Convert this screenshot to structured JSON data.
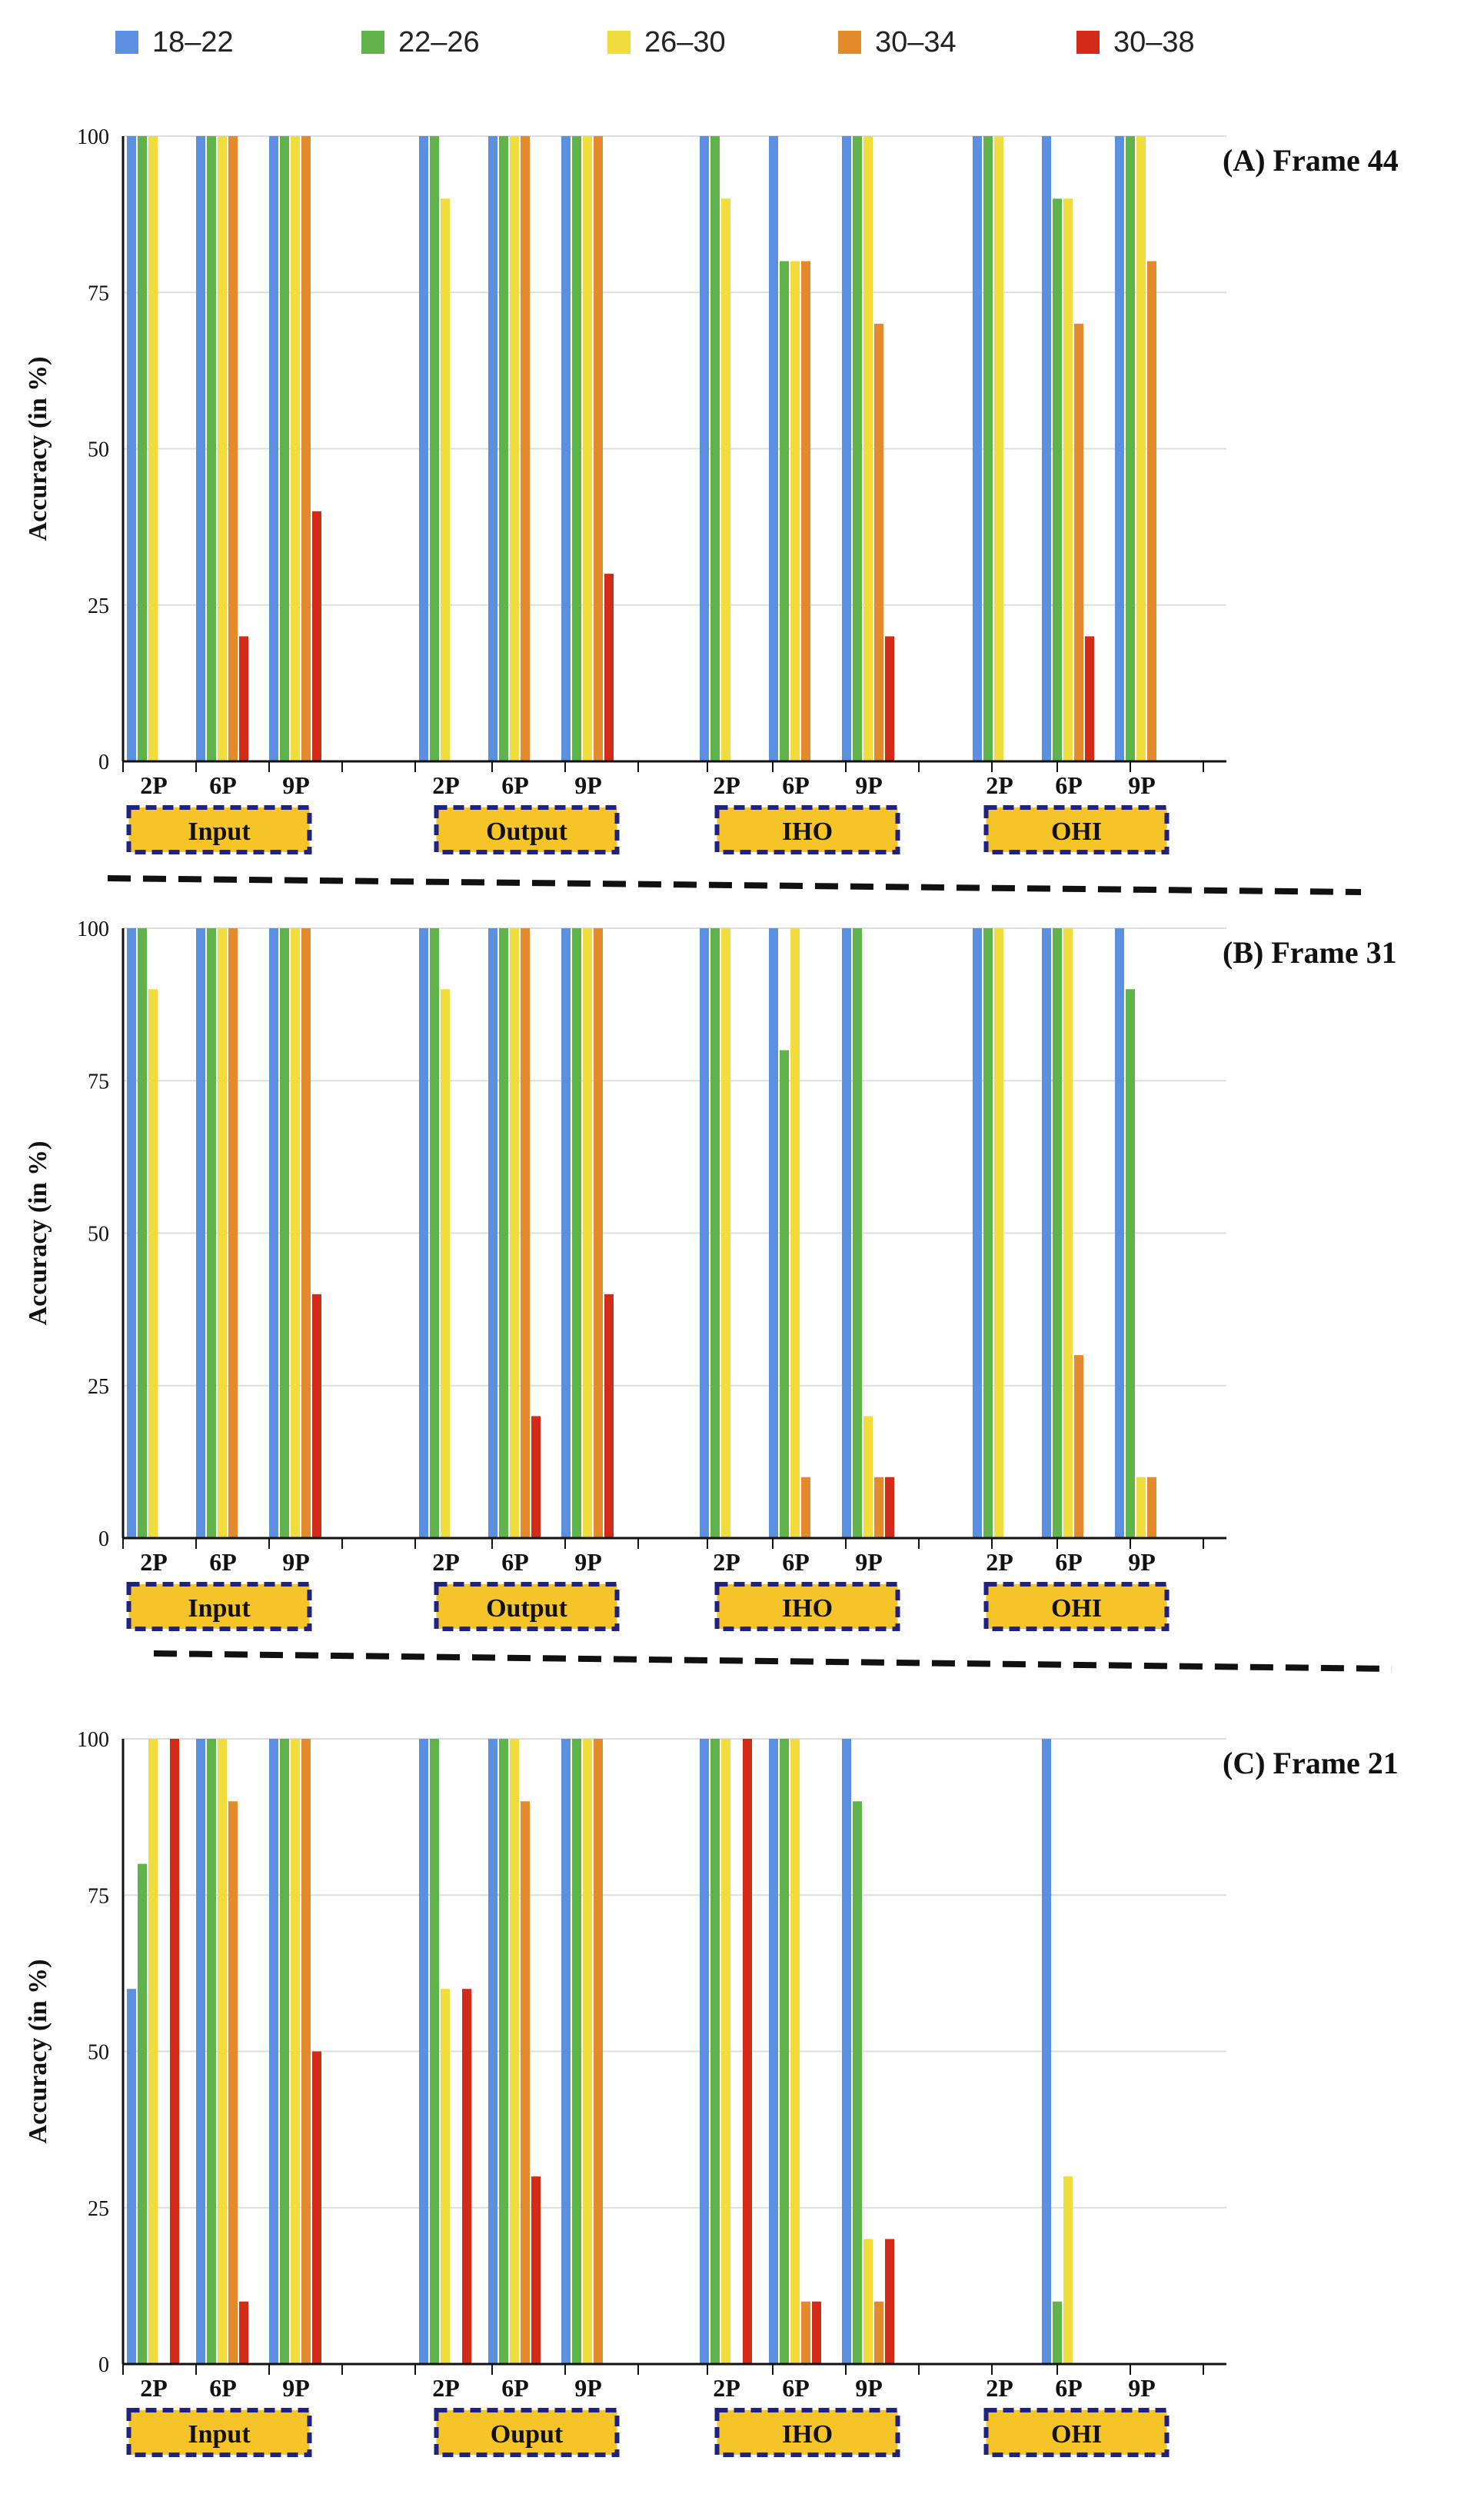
{
  "legend": [
    {
      "label": "18–22",
      "color": "#5b8fe0"
    },
    {
      "label": "22–26",
      "color": "#5fb34a"
    },
    {
      "label": "26–30",
      "color": "#f0dc3c"
    },
    {
      "label": "30–34",
      "color": "#e28a2c"
    },
    {
      "label": "30–38",
      "color": "#d42a1a"
    }
  ],
  "chart_data": [
    {
      "type": "bar",
      "title": "(A) Frame 44",
      "ylabel": "Accuracy (in %)",
      "ylim": [
        0,
        100
      ],
      "yticks": [
        0,
        25,
        50,
        75,
        100
      ],
      "series_names": [
        "18–22",
        "22–26",
        "26–30",
        "30–34",
        "30–38"
      ],
      "groups": [
        {
          "label": "Input",
          "subgroups": [
            {
              "label": "2P",
              "values": [
                100,
                100,
                100,
                0,
                0
              ]
            },
            {
              "label": "6P",
              "values": [
                100,
                100,
                100,
                100,
                20
              ]
            },
            {
              "label": "9P",
              "values": [
                100,
                100,
                100,
                100,
                40
              ]
            }
          ]
        },
        {
          "label": "Output",
          "subgroups": [
            {
              "label": "2P",
              "values": [
                100,
                100,
                90,
                0,
                0
              ]
            },
            {
              "label": "6P",
              "values": [
                100,
                100,
                100,
                100,
                0
              ]
            },
            {
              "label": "9P",
              "values": [
                100,
                100,
                100,
                100,
                30
              ]
            }
          ]
        },
        {
          "label": "IHO",
          "subgroups": [
            {
              "label": "2P",
              "values": [
                100,
                100,
                90,
                0,
                0
              ]
            },
            {
              "label": "6P",
              "values": [
                100,
                80,
                80,
                80,
                0
              ]
            },
            {
              "label": "9P",
              "values": [
                100,
                100,
                100,
                70,
                20
              ]
            }
          ]
        },
        {
          "label": "OHI",
          "subgroups": [
            {
              "label": "2P",
              "values": [
                100,
                100,
                100,
                0,
                0
              ]
            },
            {
              "label": "6P",
              "values": [
                100,
                90,
                90,
                70,
                20
              ]
            },
            {
              "label": "9P",
              "values": [
                100,
                100,
                100,
                80,
                0
              ]
            }
          ]
        }
      ]
    },
    {
      "type": "bar",
      "title": "(B) Frame 31",
      "ylabel": "Accuracy (in %)",
      "ylim": [
        0,
        100
      ],
      "yticks": [
        0,
        25,
        50,
        75,
        100
      ],
      "series_names": [
        "18–22",
        "22–26",
        "26–30",
        "30–34",
        "30–38"
      ],
      "groups": [
        {
          "label": "Input",
          "subgroups": [
            {
              "label": "2P",
              "values": [
                100,
                100,
                90,
                0,
                0
              ]
            },
            {
              "label": "6P",
              "values": [
                100,
                100,
                100,
                100,
                0
              ]
            },
            {
              "label": "9P",
              "values": [
                100,
                100,
                100,
                100,
                40
              ]
            }
          ]
        },
        {
          "label": "Output",
          "subgroups": [
            {
              "label": "2P",
              "values": [
                100,
                100,
                90,
                0,
                0
              ]
            },
            {
              "label": "6P",
              "values": [
                100,
                100,
                100,
                100,
                20
              ]
            },
            {
              "label": "9P",
              "values": [
                100,
                100,
                100,
                100,
                40
              ]
            }
          ]
        },
        {
          "label": "IHO",
          "subgroups": [
            {
              "label": "2P",
              "values": [
                100,
                100,
                100,
                0,
                0
              ]
            },
            {
              "label": "6P",
              "values": [
                100,
                80,
                100,
                10,
                0
              ]
            },
            {
              "label": "9P",
              "values": [
                100,
                100,
                20,
                10,
                10
              ]
            }
          ]
        },
        {
          "label": "OHI",
          "subgroups": [
            {
              "label": "2P",
              "values": [
                100,
                100,
                100,
                0,
                0
              ]
            },
            {
              "label": "6P",
              "values": [
                100,
                100,
                100,
                30,
                0
              ]
            },
            {
              "label": "9P",
              "values": [
                100,
                90,
                10,
                10,
                0
              ]
            }
          ]
        }
      ]
    },
    {
      "type": "bar",
      "title": "(C) Frame 21",
      "ylabel": "Accuracy (in %)",
      "ylim": [
        0,
        100
      ],
      "yticks": [
        0,
        25,
        50,
        75,
        100
      ],
      "series_names": [
        "18–22",
        "22–26",
        "26–30",
        "30–34",
        "30–38"
      ],
      "groups": [
        {
          "label": "Input",
          "subgroups": [
            {
              "label": "2P",
              "values": [
                60,
                80,
                100,
                0,
                100
              ]
            },
            {
              "label": "6P",
              "values": [
                100,
                100,
                100,
                90,
                10
              ]
            },
            {
              "label": "9P",
              "values": [
                100,
                100,
                100,
                100,
                50
              ]
            }
          ]
        },
        {
          "label": "Ouput",
          "subgroups": [
            {
              "label": "2P",
              "values": [
                100,
                100,
                60,
                0,
                60
              ]
            },
            {
              "label": "6P",
              "values": [
                100,
                100,
                100,
                90,
                30
              ]
            },
            {
              "label": "9P",
              "values": [
                100,
                100,
                100,
                100,
                0
              ]
            }
          ]
        },
        {
          "label": "IHO",
          "subgroups": [
            {
              "label": "2P",
              "values": [
                100,
                100,
                100,
                0,
                100
              ]
            },
            {
              "label": "6P",
              "values": [
                100,
                100,
                100,
                10,
                10
              ]
            },
            {
              "label": "9P",
              "values": [
                100,
                90,
                20,
                10,
                20
              ]
            }
          ]
        },
        {
          "label": "OHI",
          "subgroups": [
            {
              "label": "2P",
              "values": [
                0,
                0,
                0,
                0,
                0
              ]
            },
            {
              "label": "6P",
              "values": [
                100,
                10,
                30,
                0,
                0
              ]
            },
            {
              "label": "9P",
              "values": [
                0,
                0,
                0,
                0,
                0
              ]
            }
          ]
        }
      ]
    }
  ]
}
